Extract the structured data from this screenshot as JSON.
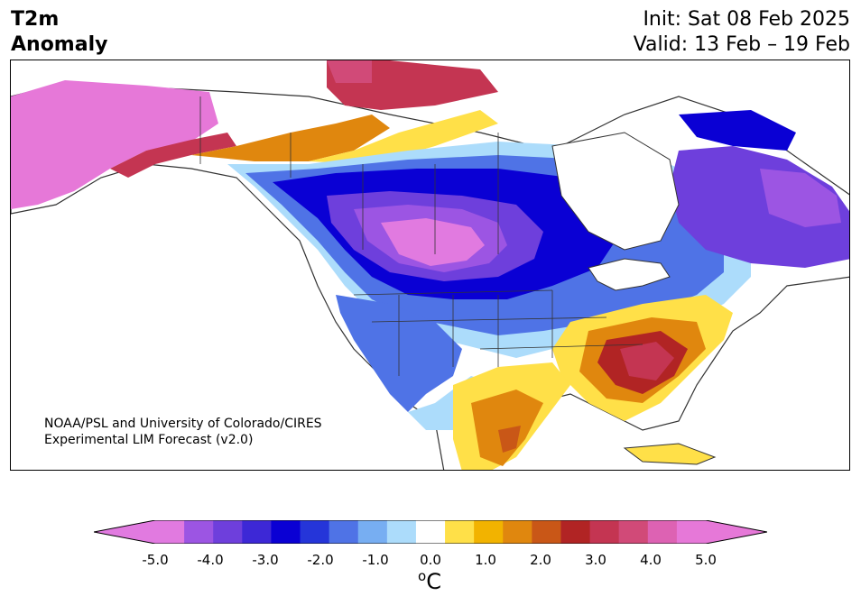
{
  "header": {
    "variable_line1": "T2m",
    "variable_line2": "Anomaly",
    "init": "Init: Sat 08 Feb 2025",
    "valid": "Valid: 13 Feb – 19 Feb"
  },
  "credit": {
    "line1": "NOAA/PSL and University of Colorado/CIRES",
    "line2": "Experimental LIM Forecast (v2.0)"
  },
  "colorbar": {
    "units_sup": "o",
    "units_base": "C",
    "ticks": [
      "-5.0",
      "-4.0",
      "-3.0",
      "-2.0",
      "-1.0",
      "0.0",
      "1.0",
      "2.0",
      "3.0",
      "4.0",
      "5.0"
    ],
    "levels": [
      -5.0,
      -4.5,
      -4.0,
      -3.5,
      -3.0,
      -2.5,
      -2.0,
      -1.5,
      -1.0,
      -0.5,
      0.5,
      1.0,
      1.5,
      2.0,
      2.5,
      3.0,
      3.5,
      4.0,
      4.5,
      5.0
    ],
    "colors": [
      "#e17ae0",
      "#9c55e3",
      "#6e3fdc",
      "#3d28d6",
      "#0a00d4",
      "#2535d9",
      "#4f73e6",
      "#77aef2",
      "#acdcfb",
      "#ffffff",
      "#ffe048",
      "#f2b300",
      "#e0870e",
      "#c95717",
      "#b12424",
      "#c43552",
      "#d14a78",
      "#dd62b3",
      "#e678d8"
    ],
    "under_color": "#e17ae0",
    "over_color": "#e678d8"
  }
}
